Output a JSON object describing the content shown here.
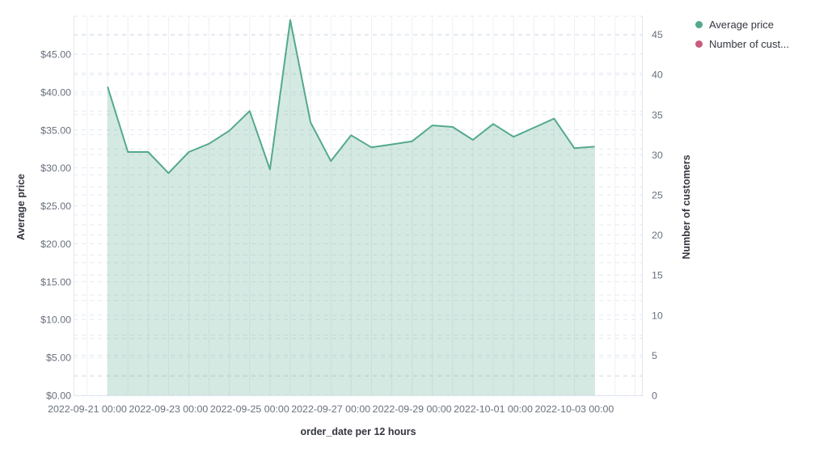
{
  "legend": {
    "items": [
      {
        "label": "Average price",
        "color": "#54a98c"
      },
      {
        "label": "Number of cust...",
        "color": "#ca5b7d"
      }
    ]
  },
  "chart_data": {
    "type": "area",
    "title": "",
    "xlabel": "order_date per 12 hours",
    "ylabel_left": "Average price",
    "ylabel_right": "Number of customers",
    "grid": "horizontal-dashed, vertical-solid",
    "legend_position": "top-right",
    "x_interval": "12 hours",
    "x": [
      "2022-09-21 12:00",
      "2022-09-22 00:00",
      "2022-09-22 12:00",
      "2022-09-23 00:00",
      "2022-09-23 12:00",
      "2022-09-24 00:00",
      "2022-09-24 12:00",
      "2022-09-25 00:00",
      "2022-09-25 12:00",
      "2022-09-26 00:00",
      "2022-09-26 12:00",
      "2022-09-27 00:00",
      "2022-09-27 12:00",
      "2022-09-28 00:00",
      "2022-09-28 12:00",
      "2022-09-29 00:00",
      "2022-09-29 12:00",
      "2022-09-30 00:00",
      "2022-09-30 12:00",
      "2022-10-01 00:00",
      "2022-10-01 12:00",
      "2022-10-02 00:00",
      "2022-10-02 12:00",
      "2022-10-03 00:00",
      "2022-10-03 12:00"
    ],
    "series": [
      {
        "name": "Average price",
        "axis": "left",
        "color": "#54a98c",
        "fill_opacity": 0.25,
        "values": [
          40.7,
          32.1,
          32.1,
          29.3,
          32.1,
          33.2,
          34.9,
          37.5,
          29.8,
          49.5,
          36.0,
          30.9,
          34.3,
          32.7,
          33.1,
          33.5,
          35.6,
          35.4,
          33.7,
          35.8,
          34.1,
          35.3,
          36.5,
          32.6,
          32.8
        ]
      },
      {
        "name": "Number of customers",
        "axis": "right",
        "color": "#ca5b7d",
        "values": []
      }
    ],
    "left_axis": {
      "ticks": [
        0,
        5,
        10,
        15,
        20,
        25,
        30,
        35,
        40,
        45
      ],
      "tick_labels": [
        "$0.00",
        "$5.00",
        "$10.00",
        "$15.00",
        "$20.00",
        "$25.00",
        "$30.00",
        "$35.00",
        "$40.00",
        "$45.00"
      ],
      "minor_step": 2.5,
      "range": [
        0,
        50
      ]
    },
    "right_axis": {
      "ticks": [
        0,
        5,
        10,
        15,
        20,
        25,
        30,
        35,
        40,
        45
      ],
      "tick_labels": [
        "0",
        "5",
        "10",
        "15",
        "20",
        "25",
        "30",
        "35",
        "40",
        "45"
      ],
      "minor_step": 2.5,
      "range": [
        0,
        47
      ]
    },
    "x_ticks": [
      "2022-09-21 00:00",
      "2022-09-23 00:00",
      "2022-09-25 00:00",
      "2022-09-27 00:00",
      "2022-09-29 00:00",
      "2022-10-01 00:00",
      "2022-10-03 00:00"
    ],
    "colors": {
      "tick_text": "#69707d",
      "axis_title_text": "#343741",
      "grid_vertical": "#eef1f6",
      "grid_horizontal": "#e3e9f0",
      "plot_border": "#e2e7ee"
    }
  }
}
